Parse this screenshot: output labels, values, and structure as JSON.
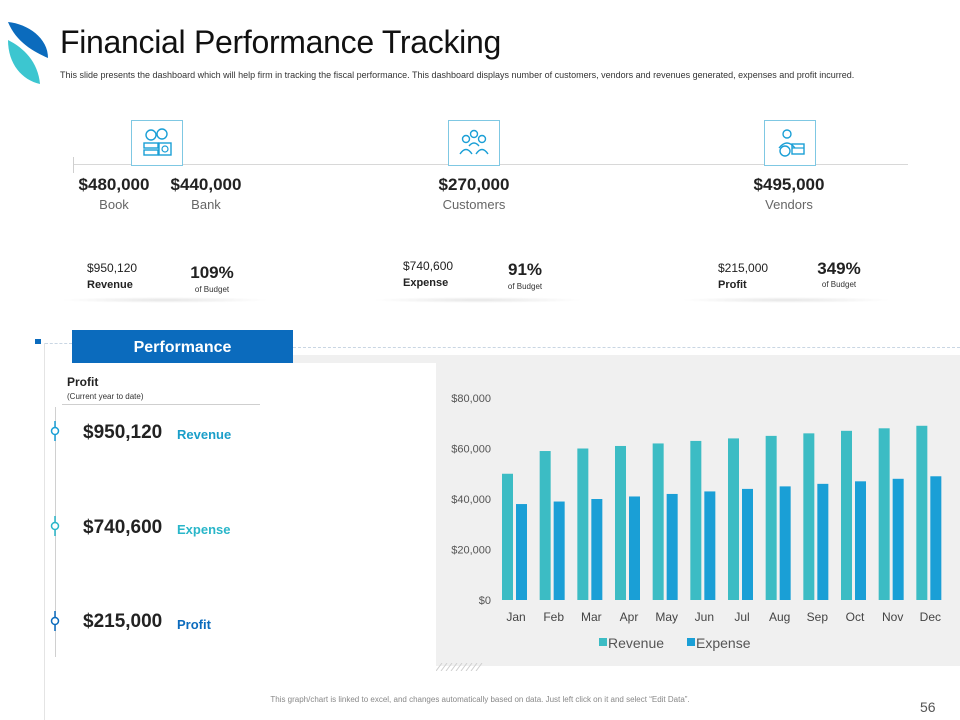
{
  "header": {
    "title": "Financial Performance Tracking",
    "subtitle": "This slide presents the dashboard which will help firm in tracking the fiscal performance. This dashboard displays number of customers, vendors and revenues generated, expenses and profit incurred."
  },
  "icons": {
    "money": "money-stack-icon",
    "customers": "customers-group-icon",
    "vendors": "vendor-icon"
  },
  "kpis": {
    "book": {
      "value": "$480,000",
      "label": "Book"
    },
    "bank": {
      "value": "$440,000",
      "label": "Bank"
    },
    "customers": {
      "value": "$270,000",
      "label": "Customers"
    },
    "vendors": {
      "value": "$495,000",
      "label": "Vendors"
    }
  },
  "budget": {
    "revenue": {
      "value": "$950,120",
      "label": "Revenue",
      "pct": "109%",
      "pct_label": "of Budget"
    },
    "expense": {
      "value": "$740,600",
      "label": "Expense",
      "pct": "91%",
      "pct_label": "of Budget"
    },
    "profit": {
      "value": "$215,000",
      "label": "Profit",
      "pct": "349%",
      "pct_label": "of Budget"
    }
  },
  "performance": {
    "button_label": "Performance",
    "profit_title": "Profit",
    "profit_sub": "(Current year to date)",
    "metrics": [
      {
        "value": "$950,120",
        "label": "Revenue",
        "color": "#1a9ec9"
      },
      {
        "value": "$740,600",
        "label": "Expense",
        "color": "#29b6c9"
      },
      {
        "value": "$215,000",
        "label": "Profit",
        "color": "#0b6bbd"
      }
    ]
  },
  "colors": {
    "revenue": "#3cbcc4",
    "expense": "#1a9fd6",
    "accent": "#0b6bbd"
  },
  "chart_data": {
    "type": "bar",
    "categories": [
      "Jan",
      "Feb",
      "Mar",
      "Apr",
      "May",
      "Jun",
      "Jul",
      "Aug",
      "Sep",
      "Oct",
      "Nov",
      "Dec"
    ],
    "series": [
      {
        "name": "Revenue",
        "values": [
          50000,
          59000,
          60000,
          61000,
          62000,
          63000,
          64000,
          65000,
          66000,
          67000,
          68000,
          69000
        ]
      },
      {
        "name": "Expense",
        "values": [
          38000,
          39000,
          40000,
          41000,
          42000,
          43000,
          44000,
          45000,
          46000,
          47000,
          48000,
          49000
        ]
      }
    ],
    "yticks": [
      "$0",
      "$20,000",
      "$40,000",
      "$60,000",
      "$80,000"
    ],
    "ylim": [
      0,
      80000
    ],
    "legend": [
      "Revenue",
      "Expense"
    ],
    "legend_position": "bottom"
  },
  "footer": {
    "note": "This graph/chart is linked to excel, and changes automatically based on data. Just left click on it and select “Edit Data”.",
    "page": "56"
  }
}
